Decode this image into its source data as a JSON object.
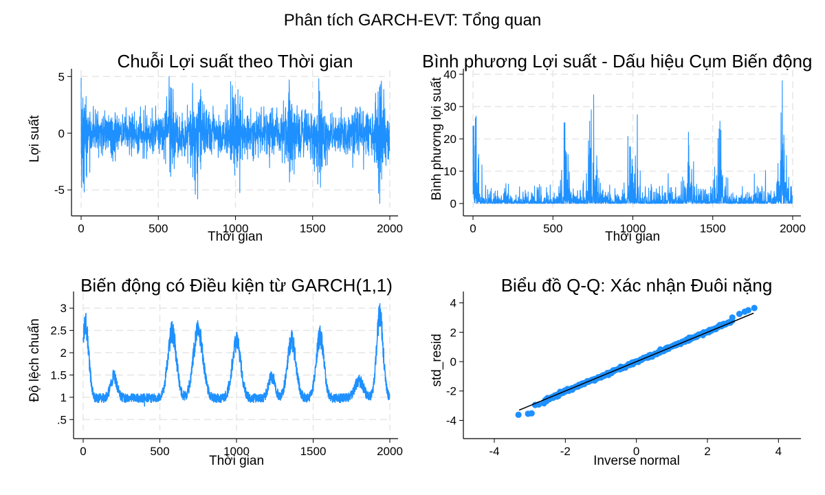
{
  "figure": {
    "title": "Phân tích GARCH-EVT: Tổng quan"
  },
  "colors": {
    "series": "#1e90ff",
    "axis": "#000000",
    "grid": "#e6e6e6",
    "fit_line": "#000000"
  },
  "chart_data": [
    {
      "type": "line",
      "title": "Chuỗi Lợi suất theo Thời gian",
      "xlabel": "Thời gian",
      "ylabel": "Lợi suất",
      "xlim": [
        0,
        2000
      ],
      "ylim": [
        -6.2,
        5.2
      ],
      "xticks": [
        0,
        500,
        1000,
        1500,
        2000
      ],
      "yticks": [
        -5,
        0,
        5
      ],
      "ytick_labels": [
        "-5",
        "0",
        "5"
      ],
      "grid": true,
      "series": [
        {
          "n": 2000,
          "notable_points": [
            {
              "x": 0,
              "y": 4.9
            },
            {
              "x": 20,
              "y": -5.2
            },
            {
              "x": 570,
              "y": 5.0
            },
            {
              "x": 740,
              "y": -5.4
            },
            {
              "x": 1540,
              "y": 4.8
            },
            {
              "x": 1935,
              "y": -6.2
            },
            {
              "x": 1945,
              "y": 4.6
            },
            {
              "x": 1350,
              "y": -4.3
            },
            {
              "x": 980,
              "y": 4.2
            }
          ]
        }
      ]
    },
    {
      "type": "line",
      "title": "Bình phương Lợi suất - Dấu hiệu Cụm Biến động",
      "xlabel": "Thời gian",
      "ylabel": "Bình phương lợi suất",
      "xlim": [
        0,
        2000
      ],
      "ylim": [
        0,
        40
      ],
      "xticks": [
        0,
        500,
        1000,
        1500,
        2000
      ],
      "yticks": [
        0,
        10,
        20,
        30,
        40
      ],
      "ytick_labels": [
        "0",
        "10",
        "20",
        "30",
        "40"
      ],
      "grid": true,
      "series": [
        {
          "n": 2000,
          "notable_points": [
            {
              "x": 5,
              "y": 24
            },
            {
              "x": 15,
              "y": 26.5
            },
            {
              "x": 575,
              "y": 25
            },
            {
              "x": 730,
              "y": 25.5
            },
            {
              "x": 740,
              "y": 29
            },
            {
              "x": 1545,
              "y": 25.5
            },
            {
              "x": 1935,
              "y": 38
            },
            {
              "x": 1350,
              "y": 18
            },
            {
              "x": 985,
              "y": 17.5
            }
          ]
        }
      ]
    },
    {
      "type": "line",
      "title": "Biến động có Điều kiện từ GARCH(1,1)",
      "xlabel": "Thời gian",
      "ylabel": "Độ lệch chuẩn",
      "xlim": [
        0,
        2000
      ],
      "ylim": [
        0.35,
        3.25
      ],
      "xticks": [
        0,
        500,
        1000,
        1500,
        2000
      ],
      "yticks": [
        0.5,
        1,
        1.5,
        2,
        2.5,
        3
      ],
      "ytick_labels": [
        ".5",
        "1",
        "1.5",
        "2",
        "2.5",
        "3"
      ],
      "grid": true,
      "series": [
        {
          "n": 2000,
          "notable_points": [
            {
              "x": 15,
              "y": 2.82
            },
            {
              "x": 580,
              "y": 2.7
            },
            {
              "x": 750,
              "y": 2.65
            },
            {
              "x": 1545,
              "y": 2.6
            },
            {
              "x": 1935,
              "y": 3.1
            },
            {
              "x": 1000,
              "y": 2.45
            },
            {
              "x": 1360,
              "y": 2.5
            },
            {
              "x": 400,
              "y": 0.8
            }
          ]
        }
      ]
    },
    {
      "type": "scatter",
      "title": "Biểu đồ Q-Q: Xác nhận Đuôi nặng",
      "xlabel": "Inverse normal",
      "ylabel": "std_resid",
      "xlim": [
        -4.6,
        4.4
      ],
      "ylim": [
        -4.4,
        4.4
      ],
      "xticks": [
        -4,
        -2,
        0,
        2,
        4
      ],
      "yticks": [
        -4,
        -2,
        0,
        2,
        4
      ],
      "xtick_labels": [
        "-4",
        "-2",
        "0",
        "2",
        "4"
      ],
      "ytick_labels": [
        "-4",
        "-2",
        "0",
        "2",
        "4"
      ],
      "grid": false,
      "reference_line": {
        "from": [
          -3.3,
          -3.3
        ],
        "to": [
          3.3,
          3.3
        ]
      },
      "tail_points": [
        {
          "x": -3.32,
          "y": -3.62
        },
        {
          "x": -3.05,
          "y": -3.55
        },
        {
          "x": -2.95,
          "y": -3.52
        },
        {
          "x": -2.85,
          "y": -2.95
        },
        {
          "x": -2.75,
          "y": -2.92
        },
        {
          "x": -2.6,
          "y": -2.8
        },
        {
          "x": 2.7,
          "y": 3.0
        },
        {
          "x": 2.9,
          "y": 3.25
        },
        {
          "x": 3.05,
          "y": 3.4
        },
        {
          "x": 3.15,
          "y": 3.5
        },
        {
          "x": 3.32,
          "y": 3.65
        }
      ],
      "n_body": 380
    }
  ]
}
